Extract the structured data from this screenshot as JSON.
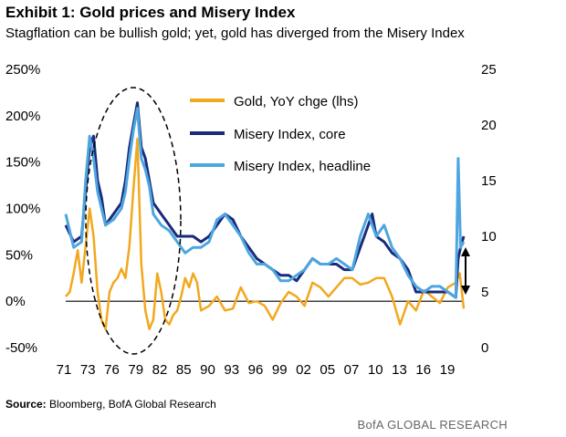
{
  "title": "Exhibit 1: Gold prices and Misery Index",
  "subtitle": "Stagflation can be bullish gold; yet, gold has diverged from the Misery Index",
  "source_label": "Source:",
  "source_text": "Bloomberg, BofA Global Research",
  "brand": "BofA GLOBAL RESEARCH",
  "colors": {
    "gold": "#F2A81D",
    "core": "#1A2A7C",
    "headline": "#4DA6E0"
  },
  "chart_data": {
    "type": "line",
    "title": "Gold prices and Misery Index",
    "x_tick_labels": [
      "71",
      "73",
      "76",
      "79",
      "82",
      "85",
      "90",
      "93",
      "96",
      "99",
      "02",
      "05",
      "07",
      "10",
      "13",
      "16",
      "19"
    ],
    "x_range": [
      1971,
      2021
    ],
    "y_left": {
      "label": "Gold, YoY chge (lhs)",
      "range": [
        -50,
        250
      ],
      "tick_labels": [
        "-50%",
        "0%",
        "50%",
        "100%",
        "150%",
        "200%",
        "250%"
      ]
    },
    "y_right": {
      "range": [
        0,
        25
      ],
      "tick_labels": [
        "0",
        "5",
        "10",
        "15",
        "20",
        "25"
      ]
    },
    "legend": [
      "Gold, YoY chge (lhs)",
      "Misery Index, core",
      "Misery Index, headline"
    ],
    "legend_position": "top-center",
    "annotations": [
      "dashed ellipse around 1973-1981 peaks",
      "double-headed arrow near 2021 between ~4 and ~9 on rhs"
    ],
    "series": [
      {
        "name": "Gold, YoY chge (lhs)",
        "axis": "left",
        "x": [
          1971,
          1971.5,
          1972,
          1972.5,
          1973,
          1973.5,
          1974,
          1974.5,
          1975,
          1975.5,
          1976,
          1976.5,
          1977,
          1977.5,
          1978,
          1978.5,
          1979,
          1979.5,
          1980,
          1980.5,
          1981,
          1981.5,
          1982,
          1982.5,
          1983,
          1983.5,
          1984,
          1984.5,
          1985,
          1985.5,
          1986,
          1986.5,
          1987,
          1987.5,
          1988,
          1989,
          1990,
          1991,
          1992,
          1993,
          1994,
          1995,
          1996,
          1997,
          1998,
          1999,
          2000,
          2001,
          2002,
          2003,
          2004,
          2005,
          2006,
          2007,
          2008,
          2009,
          2010,
          2011,
          2012,
          2013,
          2014,
          2015,
          2016,
          2017,
          2018,
          2019,
          2020,
          2020.5,
          2021
        ],
        "values": [
          5,
          10,
          30,
          55,
          20,
          60,
          100,
          70,
          10,
          -20,
          -30,
          10,
          20,
          25,
          35,
          25,
          60,
          120,
          175,
          40,
          -10,
          -30,
          -20,
          30,
          10,
          -20,
          -25,
          -15,
          -10,
          5,
          25,
          15,
          30,
          20,
          -10,
          -5,
          5,
          -10,
          -8,
          15,
          -2,
          0,
          -5,
          -20,
          -2,
          10,
          5,
          -5,
          20,
          15,
          5,
          15,
          25,
          25,
          18,
          20,
          25,
          25,
          5,
          -25,
          0,
          -10,
          12,
          5,
          -2,
          15,
          20,
          30,
          -8
        ]
      },
      {
        "name": "Misery Index, core",
        "axis": "right",
        "x": [
          1971,
          1972,
          1973,
          1973.5,
          1974,
          1974.5,
          1975,
          1975.5,
          1976,
          1977,
          1978,
          1978.5,
          1979,
          1979.5,
          1980,
          1980.5,
          1981,
          1981.5,
          1982,
          1982.5,
          1983,
          1984,
          1985,
          1986,
          1987,
          1988,
          1989,
          1990,
          1991,
          1992,
          1993,
          1994,
          1995,
          1996,
          1997,
          1998,
          1999,
          2000,
          2001,
          2002,
          2003,
          2004,
          2005,
          2006,
          2007,
          2008,
          2009,
          2009.5,
          2010,
          2011,
          2012,
          2013,
          2014,
          2015,
          2016,
          2017,
          2018,
          2019,
          2020,
          2020.3,
          2020.6,
          2021
        ],
        "values": [
          11,
          9.5,
          10,
          14,
          18,
          19,
          15,
          13.5,
          11,
          12,
          13,
          15,
          18,
          20,
          22,
          18,
          17,
          15,
          13,
          12.5,
          12,
          11,
          10,
          10,
          10,
          9.5,
          10,
          11,
          12,
          11.5,
          10,
          9,
          8,
          7.5,
          7,
          6.5,
          6.5,
          6,
          7,
          8,
          7.5,
          7.5,
          7.5,
          7,
          7,
          9,
          11,
          12,
          10,
          9.5,
          8.5,
          8,
          7,
          5,
          5,
          5,
          5,
          5,
          4.5,
          8,
          9,
          10
        ]
      },
      {
        "name": "Misery Index, headline",
        "axis": "right",
        "x": [
          1971,
          1972,
          1973,
          1973.5,
          1974,
          1974.5,
          1975,
          1975.5,
          1976,
          1977,
          1978,
          1978.5,
          1979,
          1979.5,
          1980,
          1980.5,
          1981,
          1981.5,
          1982,
          1982.5,
          1983,
          1984,
          1985,
          1986,
          1987,
          1988,
          1989,
          1990,
          1991,
          1992,
          1993,
          1994,
          1995,
          1996,
          1997,
          1998,
          1999,
          2000,
          2001,
          2002,
          2003,
          2004,
          2005,
          2006,
          2007,
          2008,
          2009,
          2009.5,
          2010,
          2011,
          2012,
          2013,
          2014,
          2015,
          2016,
          2017,
          2018,
          2019,
          2020,
          2020.3,
          2020.6,
          2021
        ],
        "values": [
          12,
          9,
          9.5,
          15,
          19,
          17,
          14,
          12.5,
          11,
          11.5,
          12.5,
          14,
          17,
          19.5,
          21.5,
          17,
          16,
          14.5,
          12,
          11.5,
          11,
          10.5,
          9.5,
          8.5,
          9,
          9,
          9.5,
          11.5,
          12,
          11,
          10,
          8.5,
          7.5,
          7.5,
          7,
          6,
          6,
          6.5,
          7,
          8,
          7.5,
          7.5,
          8,
          7.5,
          7,
          10,
          12,
          11,
          10,
          11,
          9,
          8,
          6.5,
          5.5,
          5,
          5.5,
          5.5,
          5,
          4.5,
          17,
          9,
          9.5
        ]
      }
    ]
  }
}
